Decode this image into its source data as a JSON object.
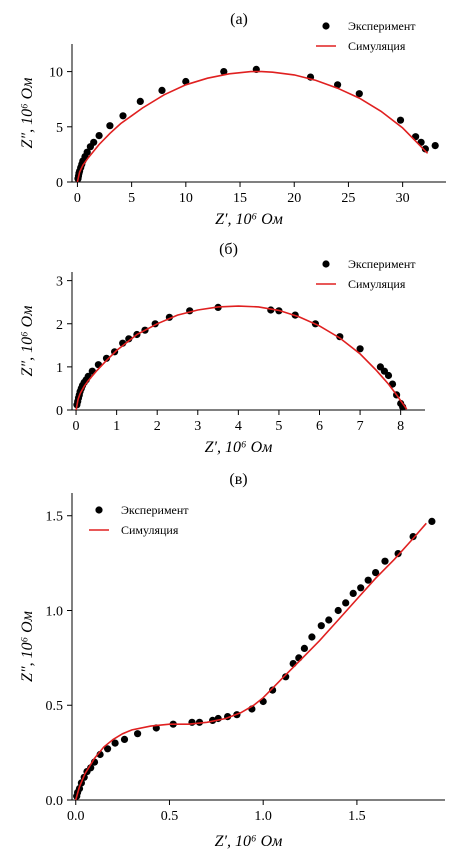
{
  "chart_data": [
    {
      "type": "scatter",
      "panel_label": "(а)",
      "xlabel": "Z′, 10⁶ Ом",
      "ylabel": "Z″, 10⁶ Ом",
      "xlim": [
        -0.5,
        34
      ],
      "ylim": [
        0,
        12.5
      ],
      "xticks": [
        0,
        5,
        10,
        15,
        20,
        25,
        30
      ],
      "yticks": [
        0,
        5,
        10
      ],
      "legend": "top-right",
      "series": [
        {
          "name": "Эксперимент",
          "kind": "points",
          "color": "#000000",
          "x": [
            0.05,
            0.1,
            0.15,
            0.2,
            0.3,
            0.4,
            0.5,
            0.7,
            0.9,
            1.2,
            1.5,
            2.0,
            3.0,
            4.2,
            5.8,
            7.8,
            10.0,
            13.5,
            16.5,
            21.5,
            24.0,
            26.0,
            29.8,
            31.2,
            31.7,
            32.1,
            33.0
          ],
          "y": [
            0.3,
            0.55,
            0.8,
            1.0,
            1.3,
            1.6,
            1.9,
            2.3,
            2.7,
            3.2,
            3.6,
            4.2,
            5.1,
            6.0,
            7.3,
            8.3,
            9.1,
            10.0,
            10.2,
            9.5,
            8.8,
            8.0,
            5.6,
            4.1,
            3.6,
            3.0,
            3.3
          ]
        },
        {
          "name": "Симуляция",
          "kind": "line",
          "color": "#e02020",
          "x": [
            0.0,
            0.2,
            0.5,
            1.0,
            2.0,
            3.0,
            4.0,
            5.0,
            6.0,
            8.0,
            10.0,
            12.0,
            14.0,
            16.0,
            17.0,
            18.0,
            20.0,
            22.0,
            24.0,
            26.0,
            28.0,
            30.0,
            31.0,
            31.5,
            32.0,
            32.3
          ],
          "y": [
            0.0,
            0.9,
            1.5,
            2.2,
            3.4,
            4.4,
            5.3,
            6.0,
            6.7,
            7.9,
            8.8,
            9.4,
            9.8,
            10.0,
            10.0,
            9.95,
            9.7,
            9.2,
            8.5,
            7.6,
            6.4,
            4.9,
            3.9,
            3.4,
            2.9,
            2.6
          ]
        }
      ]
    },
    {
      "type": "scatter",
      "panel_label": "(б)",
      "xlabel": "Z′, 10⁶ Ом",
      "ylabel": "Z″, 10⁶ Ом",
      "xlim": [
        -0.1,
        8.6
      ],
      "ylim": [
        0,
        3.2
      ],
      "xticks": [
        0,
        1,
        2,
        3,
        4,
        5,
        6,
        7,
        8
      ],
      "yticks": [
        0,
        1,
        2,
        3
      ],
      "legend": "top-right",
      "series": [
        {
          "name": "Эксперимент",
          "kind": "points",
          "color": "#000000",
          "x": [
            0.02,
            0.04,
            0.06,
            0.08,
            0.1,
            0.13,
            0.16,
            0.2,
            0.25,
            0.3,
            0.4,
            0.55,
            0.75,
            0.95,
            1.15,
            1.3,
            1.5,
            1.7,
            1.95,
            2.3,
            2.8,
            3.5,
            4.8,
            5.0,
            5.4,
            5.9,
            6.5,
            7.0,
            7.5,
            7.6,
            7.7,
            7.8,
            7.9,
            8.0,
            8.05
          ],
          "y": [
            0.12,
            0.2,
            0.28,
            0.35,
            0.43,
            0.5,
            0.57,
            0.64,
            0.7,
            0.78,
            0.9,
            1.05,
            1.2,
            1.35,
            1.55,
            1.65,
            1.75,
            1.85,
            2.0,
            2.15,
            2.3,
            2.38,
            2.32,
            2.3,
            2.2,
            2.0,
            1.7,
            1.42,
            1.0,
            0.9,
            0.8,
            0.6,
            0.35,
            0.15,
            0.07
          ]
        },
        {
          "name": "Симуляция",
          "kind": "line",
          "color": "#e02020",
          "x": [
            0.0,
            0.05,
            0.1,
            0.2,
            0.3,
            0.5,
            0.75,
            1.0,
            1.5,
            2.0,
            2.5,
            3.0,
            3.5,
            4.0,
            4.5,
            5.0,
            5.5,
            6.0,
            6.5,
            7.0,
            7.4,
            7.7,
            7.9,
            8.05,
            8.15
          ],
          "y": [
            0.0,
            0.25,
            0.38,
            0.55,
            0.68,
            0.9,
            1.15,
            1.38,
            1.75,
            2.0,
            2.2,
            2.32,
            2.39,
            2.41,
            2.39,
            2.31,
            2.16,
            1.95,
            1.67,
            1.3,
            0.92,
            0.6,
            0.35,
            0.15,
            0.02
          ]
        }
      ]
    },
    {
      "type": "scatter",
      "panel_label": "(в)",
      "xlabel": "Z′, 10⁶ Ом",
      "ylabel": "Z″, 10⁶ Ом",
      "xlim": [
        -0.02,
        1.97
      ],
      "ylim": [
        0,
        1.62
      ],
      "xticks": [
        0.0,
        0.5,
        1.0,
        1.5
      ],
      "yticks": [
        0.0,
        0.5,
        1.0,
        1.5
      ],
      "legend": "top-left",
      "series": [
        {
          "name": "Эксперимент",
          "kind": "points",
          "color": "#000000",
          "x": [
            0.005,
            0.01,
            0.02,
            0.03,
            0.045,
            0.06,
            0.08,
            0.1,
            0.13,
            0.17,
            0.21,
            0.26,
            0.33,
            0.43,
            0.52,
            0.62,
            0.66,
            0.73,
            0.76,
            0.81,
            0.86,
            0.94,
            1.0,
            1.05,
            1.12,
            1.16,
            1.19,
            1.22,
            1.26,
            1.31,
            1.35,
            1.4,
            1.44,
            1.48,
            1.52,
            1.56,
            1.6,
            1.65,
            1.72,
            1.8,
            1.9
          ],
          "y": [
            0.02,
            0.04,
            0.06,
            0.09,
            0.12,
            0.15,
            0.17,
            0.2,
            0.24,
            0.27,
            0.3,
            0.32,
            0.35,
            0.38,
            0.4,
            0.41,
            0.41,
            0.42,
            0.43,
            0.44,
            0.45,
            0.48,
            0.52,
            0.58,
            0.65,
            0.72,
            0.75,
            0.8,
            0.86,
            0.92,
            0.95,
            1.0,
            1.04,
            1.09,
            1.12,
            1.16,
            1.2,
            1.26,
            1.3,
            1.39,
            1.47
          ]
        },
        {
          "name": "Симуляция",
          "kind": "line",
          "color": "#e02020",
          "x": [
            0.0,
            0.02,
            0.05,
            0.1,
            0.15,
            0.2,
            0.25,
            0.3,
            0.4,
            0.5,
            0.6,
            0.7,
            0.8,
            0.88,
            0.95,
            1.0,
            1.05,
            1.1,
            1.2,
            1.3,
            1.4,
            1.5,
            1.6,
            1.7,
            1.8,
            1.87
          ],
          "y": [
            0.0,
            0.07,
            0.14,
            0.22,
            0.28,
            0.32,
            0.35,
            0.37,
            0.39,
            0.4,
            0.4,
            0.41,
            0.43,
            0.46,
            0.5,
            0.54,
            0.59,
            0.64,
            0.74,
            0.84,
            0.95,
            1.06,
            1.17,
            1.27,
            1.38,
            1.46
          ]
        }
      ]
    }
  ]
}
